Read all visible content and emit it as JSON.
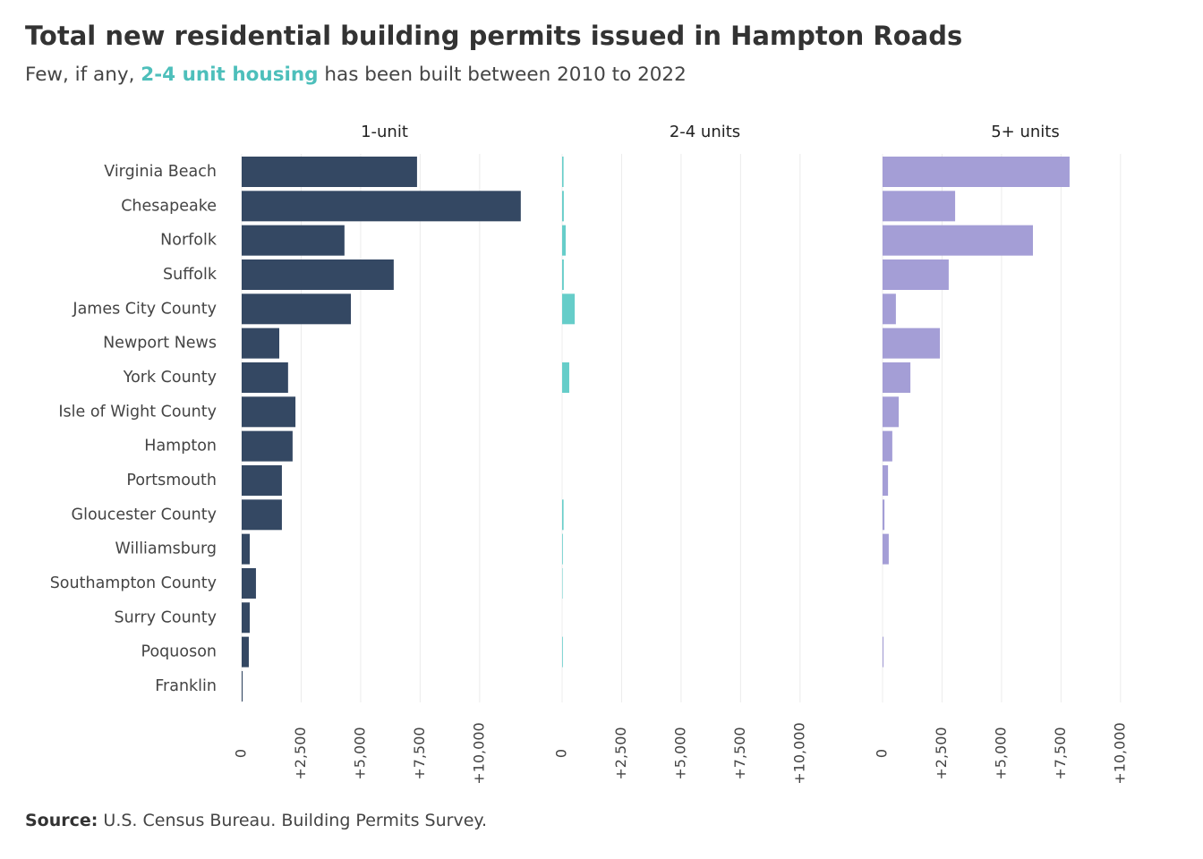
{
  "title": "Total new residential building permits issued in Hampton Roads",
  "subtitle": [
    "Few, if any, ",
    "2-4 unit housing",
    " has been built between 2010 to 2022"
  ],
  "subtitle_highlight_color": "#4dbfbb",
  "source": [
    "Source:",
    " U.S. Census Bureau. Building Permits Survey."
  ],
  "chart_data": [
    {
      "type": "bar",
      "orientation": "horizontal",
      "title": "1-unit",
      "color": "#344863",
      "categories": [
        "Virginia Beach",
        "Chesapeake",
        "Norfolk",
        "Suffolk",
        "James City County",
        "Newport News",
        "York County",
        "Isle of Wight County",
        "Hampton",
        "Portsmouth",
        "Gloucester County",
        "Williamsburg",
        "Southampton County",
        "Surry County",
        "Poquoson",
        "Franklin"
      ],
      "values": [
        7370,
        11730,
        4320,
        6390,
        4590,
        1580,
        1950,
        2260,
        2140,
        1690,
        1690,
        340,
        600,
        340,
        300,
        40
      ],
      "xlim": [
        0,
        12000
      ],
      "xticks": [
        0,
        {
          "value": 2500,
          "label": "+2,500"
        },
        {
          "value": 5000,
          "label": "+5,000"
        },
        {
          "value": 7500,
          "label": "+7,500"
        },
        {
          "value": 10000,
          "label": "+10,000"
        }
      ],
      "grid": true
    },
    {
      "type": "bar",
      "orientation": "horizontal",
      "title": "2-4 units",
      "color": "#66cdc9",
      "values": [
        60,
        70,
        150,
        70,
        530,
        0,
        300,
        0,
        0,
        0,
        60,
        30,
        20,
        0,
        30,
        0
      ],
      "xlim": [
        0,
        12000
      ],
      "xticks": [
        0,
        {
          "value": 2500,
          "label": "+2,500"
        },
        {
          "value": 5000,
          "label": "+5,000"
        },
        {
          "value": 7500,
          "label": "+7,500"
        },
        {
          "value": 10000,
          "label": "+10,000"
        }
      ],
      "grid": true
    },
    {
      "type": "bar",
      "orientation": "horizontal",
      "title": "5+ units",
      "color": "#a49ed6",
      "values": [
        7860,
        3050,
        6320,
        2780,
        560,
        2410,
        1170,
        680,
        410,
        230,
        80,
        260,
        0,
        0,
        40,
        0
      ],
      "xlim": [
        0,
        12000
      ],
      "xticks": [
        0,
        {
          "value": 2500,
          "label": "+2,500"
        },
        {
          "value": 5000,
          "label": "+5,000"
        },
        {
          "value": 7500,
          "label": "+7,500"
        },
        {
          "value": 10000,
          "label": "+10,000"
        }
      ],
      "grid": true
    }
  ]
}
